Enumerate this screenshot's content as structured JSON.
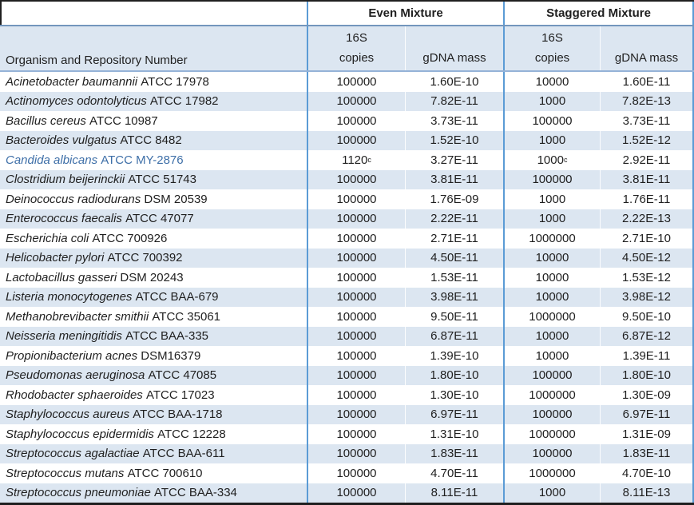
{
  "colors": {
    "stripe": "#DCE6F1",
    "group_separator": "#5B9BD5",
    "header_rule": "#7396BD",
    "header_rule_light": "#95B3D7",
    "outer_border": "#1F1F1F",
    "body_text": "#1F1F1F",
    "highlight_organism_text": "#3E6FA8"
  },
  "table": {
    "organism_header": "Organism and Repository Number",
    "group_headers": [
      "Even Mixture",
      "Staggered Mixture"
    ],
    "copies_header": [
      "16S",
      "copies"
    ],
    "mass_header": "gDNA mass",
    "rows": [
      {
        "organism": "Acinetobacter baumannii",
        "repo": "ATCC 17978",
        "even_copies": "100000",
        "even_mass": "1.60E-10",
        "stag_copies": "10000",
        "stag_mass": "1.60E-11"
      },
      {
        "organism": "Actinomyces odontolyticus",
        "repo": "ATCC 17982",
        "even_copies": "100000",
        "even_mass": "7.82E-11",
        "stag_copies": "1000",
        "stag_mass": "7.82E-13"
      },
      {
        "organism": "Bacillus cereus",
        "repo": "ATCC 10987",
        "even_copies": "100000",
        "even_mass": "3.73E-11",
        "stag_copies": "100000",
        "stag_mass": "3.73E-11"
      },
      {
        "organism": "Bacteroides vulgatus",
        "repo": "ATCC 8482",
        "even_copies": "100000",
        "even_mass": "1.52E-10",
        "stag_copies": "1000",
        "stag_mass": "1.52E-12"
      },
      {
        "organism": "Candida albicans",
        "repo": "ATCC MY-2876",
        "even_copies": "1120",
        "even_copies_sup": "c",
        "even_mass": "3.27E-11",
        "stag_copies": "1000",
        "stag_copies_sup": "c",
        "stag_mass": "2.92E-11",
        "highlight": true
      },
      {
        "organism": "Clostridium beijerinckii",
        "repo": "ATCC 51743",
        "even_copies": "100000",
        "even_mass": "3.81E-11",
        "stag_copies": "100000",
        "stag_mass": "3.81E-11"
      },
      {
        "organism": "Deinococcus radiodurans",
        "repo": "DSM 20539",
        "even_copies": "100000",
        "even_mass": "1.76E-09",
        "stag_copies": "1000",
        "stag_mass": "1.76E-11"
      },
      {
        "organism": "Enterococcus faecalis",
        "repo": "ATCC 47077",
        "even_copies": "100000",
        "even_mass": "2.22E-11",
        "stag_copies": "1000",
        "stag_mass": "2.22E-13"
      },
      {
        "organism": "Escherichia coli",
        "repo": "ATCC 700926",
        "even_copies": "100000",
        "even_mass": "2.71E-11",
        "stag_copies": "1000000",
        "stag_mass": "2.71E-10"
      },
      {
        "organism": "Helicobacter pylori",
        "repo": "ATCC 700392",
        "even_copies": "100000",
        "even_mass": "4.50E-11",
        "stag_copies": "10000",
        "stag_mass": "4.50E-12"
      },
      {
        "organism": "Lactobacillus gasseri",
        "repo": "DSM 20243",
        "even_copies": "100000",
        "even_mass": "1.53E-11",
        "stag_copies": "10000",
        "stag_mass": "1.53E-12"
      },
      {
        "organism": "Listeria monocytogenes",
        "repo": "ATCC BAA-679",
        "even_copies": "100000",
        "even_mass": "3.98E-11",
        "stag_copies": "10000",
        "stag_mass": "3.98E-12"
      },
      {
        "organism": "Methanobrevibacter smithii",
        "repo": "ATCC 35061",
        "even_copies": "100000",
        "even_mass": "9.50E-11",
        "stag_copies": "1000000",
        "stag_mass": "9.50E-10"
      },
      {
        "organism": "Neisseria meningitidis",
        "repo": "ATCC BAA-335",
        "even_copies": "100000",
        "even_mass": "6.87E-11",
        "stag_copies": "10000",
        "stag_mass": "6.87E-12"
      },
      {
        "organism": "Propionibacterium acnes",
        "repo": "DSM16379",
        "even_copies": "100000",
        "even_mass": "1.39E-10",
        "stag_copies": "10000",
        "stag_mass": "1.39E-11"
      },
      {
        "organism": "Pseudomonas aeruginosa",
        "repo": "ATCC 47085",
        "even_copies": "100000",
        "even_mass": "1.80E-10",
        "stag_copies": "100000",
        "stag_mass": "1.80E-10"
      },
      {
        "organism": "Rhodobacter sphaeroides",
        "repo": "ATCC 17023",
        "even_copies": "100000",
        "even_mass": "1.30E-10",
        "stag_copies": "1000000",
        "stag_mass": "1.30E-09"
      },
      {
        "organism": "Staphylococcus aureus",
        "repo": "ATCC BAA-1718",
        "even_copies": "100000",
        "even_mass": "6.97E-11",
        "stag_copies": "100000",
        "stag_mass": "6.97E-11"
      },
      {
        "organism": "Staphylococcus epidermidis",
        "repo": "ATCC 12228",
        "even_copies": "100000",
        "even_mass": "1.31E-10",
        "stag_copies": "1000000",
        "stag_mass": "1.31E-09"
      },
      {
        "organism": "Streptococcus agalactiae",
        "repo": "ATCC BAA-611",
        "even_copies": "100000",
        "even_mass": "1.83E-11",
        "stag_copies": "100000",
        "stag_mass": "1.83E-11"
      },
      {
        "organism": "Streptococcus mutans",
        "repo": "ATCC 700610",
        "even_copies": "100000",
        "even_mass": "4.70E-11",
        "stag_copies": "1000000",
        "stag_mass": "4.70E-10"
      },
      {
        "organism": "Streptococcus pneumoniae",
        "repo": "ATCC BAA-334",
        "even_copies": "100000",
        "even_mass": "8.11E-11",
        "stag_copies": "1000",
        "stag_mass": "8.11E-13"
      }
    ]
  }
}
